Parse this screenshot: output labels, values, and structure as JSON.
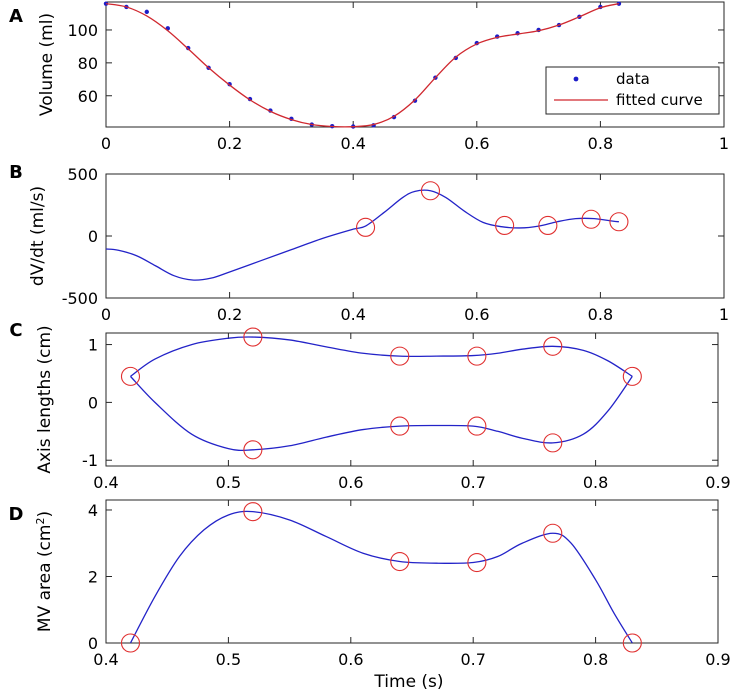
{
  "colors": {
    "curve": "#2323c8",
    "fit": "#d0282f",
    "marker": "#e03030",
    "points": "#1d1dc8",
    "axis": "#262626"
  },
  "chart_data": [
    {
      "panel": "A",
      "type": "line",
      "ylabel": "Volume (ml)",
      "xlabel": "",
      "xlim": [
        0,
        1
      ],
      "ylim": [
        41,
        117
      ],
      "xticks": [
        0,
        0.2,
        0.4,
        0.6,
        0.8,
        1
      ],
      "xtick_labels": [
        "0",
        "0.2",
        "0.4",
        "0.6",
        "0.8",
        "1"
      ],
      "yticks": [
        60,
        80,
        100
      ],
      "ytick_labels": [
        "60",
        "80",
        "100"
      ],
      "legend": {
        "position": "bottom-right",
        "entries": [
          "data",
          "fitted curve"
        ]
      },
      "series": [
        {
          "name": "data",
          "style": "points",
          "x": [
            0,
            0.033,
            0.066,
            0.1,
            0.133,
            0.166,
            0.2,
            0.233,
            0.266,
            0.3,
            0.333,
            0.366,
            0.4,
            0.433,
            0.466,
            0.5,
            0.533,
            0.566,
            0.6,
            0.633,
            0.666,
            0.7,
            0.733,
            0.766,
            0.8,
            0.83
          ],
          "y": [
            116,
            114,
            111,
            101,
            89,
            77,
            67,
            58,
            51,
            46,
            42.5,
            41.5,
            41.3,
            42,
            47,
            57,
            71,
            83,
            92,
            96,
            98,
            100,
            103,
            108,
            114,
            116
          ]
        },
        {
          "name": "fitted curve",
          "style": "line",
          "x": [
            0,
            0.033,
            0.066,
            0.1,
            0.133,
            0.166,
            0.2,
            0.233,
            0.266,
            0.3,
            0.333,
            0.366,
            0.4,
            0.433,
            0.466,
            0.5,
            0.533,
            0.566,
            0.6,
            0.633,
            0.666,
            0.7,
            0.733,
            0.766,
            0.8,
            0.83
          ],
          "y": [
            116,
            114,
            108.5,
            99.5,
            88.5,
            77,
            66.5,
            57.5,
            50.5,
            45.5,
            42.5,
            41.3,
            41.2,
            42.5,
            47.5,
            57.5,
            71,
            83.5,
            91.5,
            95.5,
            97.5,
            99.5,
            103,
            108,
            113.5,
            116
          ]
        }
      ]
    },
    {
      "panel": "B",
      "type": "line",
      "ylabel": "dV/dt (ml/s)",
      "xlabel": "",
      "xlim": [
        0,
        1
      ],
      "ylim": [
        -500,
        500
      ],
      "xticks": [
        0,
        0.2,
        0.4,
        0.6,
        0.8,
        1
      ],
      "xtick_labels": [
        "0",
        "0.2",
        "0.4",
        "0.6",
        "0.8",
        "1"
      ],
      "yticks": [
        -500,
        0,
        500
      ],
      "ytick_labels": [
        "-500",
        "0",
        "500"
      ],
      "series": [
        {
          "name": "dV/dt",
          "style": "line",
          "x": [
            0,
            0.02,
            0.05,
            0.08,
            0.11,
            0.14,
            0.17,
            0.2,
            0.25,
            0.3,
            0.35,
            0.4,
            0.42,
            0.45,
            0.48,
            0.5,
            0.525,
            0.55,
            0.58,
            0.61,
            0.64,
            0.67,
            0.7,
            0.73,
            0.76,
            0.79,
            0.82,
            0.83
          ],
          "y": [
            -105,
            -115,
            -160,
            -240,
            -320,
            -355,
            -340,
            -290,
            -200,
            -110,
            -20,
            55,
            80,
            190,
            310,
            360,
            365,
            310,
            200,
            110,
            75,
            65,
            80,
            115,
            140,
            140,
            120,
            115
          ]
        },
        {
          "name": "markers",
          "style": "circles",
          "x": [
            0.42,
            0.525,
            0.645,
            0.715,
            0.785,
            0.83
          ],
          "y": [
            70,
            365,
            85,
            85,
            135,
            115
          ]
        }
      ]
    },
    {
      "panel": "C",
      "type": "line",
      "ylabel": "Axis lengths (cm)",
      "xlabel": "",
      "xlim": [
        0.4,
        0.9
      ],
      "ylim": [
        -1.1,
        1.2
      ],
      "xticks": [
        0.4,
        0.5,
        0.6,
        0.7,
        0.8,
        0.9
      ],
      "xtick_labels": [
        "0.4",
        "0.5",
        "0.6",
        "0.7",
        "0.8",
        "0.9"
      ],
      "yticks": [
        -1,
        0,
        1
      ],
      "ytick_labels": [
        "-1",
        "0",
        "1"
      ],
      "series": [
        {
          "name": "upper axis",
          "style": "line",
          "x": [
            0.42,
            0.44,
            0.47,
            0.5,
            0.52,
            0.55,
            0.58,
            0.61,
            0.64,
            0.67,
            0.7,
            0.72,
            0.74,
            0.765,
            0.79,
            0.81,
            0.83
          ],
          "y": [
            0.45,
            0.75,
            1.0,
            1.11,
            1.13,
            1.08,
            0.96,
            0.85,
            0.8,
            0.8,
            0.81,
            0.85,
            0.92,
            0.97,
            0.9,
            0.72,
            0.45
          ]
        },
        {
          "name": "lower axis",
          "style": "line",
          "x": [
            0.42,
            0.44,
            0.47,
            0.5,
            0.52,
            0.55,
            0.58,
            0.61,
            0.64,
            0.67,
            0.7,
            0.72,
            0.74,
            0.765,
            0.79,
            0.81,
            0.83
          ],
          "y": [
            0.45,
            0.0,
            -0.55,
            -0.8,
            -0.82,
            -0.75,
            -0.6,
            -0.47,
            -0.41,
            -0.4,
            -0.41,
            -0.5,
            -0.62,
            -0.7,
            -0.55,
            -0.15,
            0.45
          ]
        },
        {
          "name": "markers",
          "style": "circles",
          "x": [
            0.42,
            0.52,
            0.52,
            0.64,
            0.64,
            0.703,
            0.703,
            0.765,
            0.765,
            0.83
          ],
          "y": [
            0.45,
            1.13,
            -0.82,
            0.8,
            -0.41,
            0.8,
            -0.41,
            0.97,
            -0.7,
            0.45
          ]
        }
      ]
    },
    {
      "panel": "D",
      "type": "line",
      "ylabel": "MV area (cm",
      "ylabel_sup": "2",
      "ylabel_end": ")",
      "xlabel": "Time (s)",
      "xlim": [
        0.4,
        0.9
      ],
      "ylim": [
        0,
        4.3
      ],
      "xticks": [
        0.4,
        0.5,
        0.6,
        0.7,
        0.8,
        0.9
      ],
      "xtick_labels": [
        "0.4",
        "0.5",
        "0.6",
        "0.7",
        "0.8",
        "0.9"
      ],
      "yticks": [
        0,
        2,
        4
      ],
      "ytick_labels": [
        "0",
        "2",
        "4"
      ],
      "series": [
        {
          "name": "MV area",
          "style": "line",
          "x": [
            0.42,
            0.44,
            0.46,
            0.48,
            0.5,
            0.52,
            0.55,
            0.58,
            0.61,
            0.64,
            0.67,
            0.7,
            0.72,
            0.74,
            0.765,
            0.78,
            0.8,
            0.815,
            0.83
          ],
          "y": [
            0,
            1.4,
            2.6,
            3.4,
            3.85,
            3.95,
            3.7,
            3.2,
            2.7,
            2.45,
            2.4,
            2.42,
            2.6,
            3.0,
            3.3,
            3.0,
            1.9,
            0.9,
            0
          ]
        },
        {
          "name": "markers",
          "style": "circles",
          "x": [
            0.42,
            0.52,
            0.64,
            0.703,
            0.765,
            0.83
          ],
          "y": [
            0,
            3.95,
            2.45,
            2.42,
            3.3,
            0
          ]
        }
      ]
    }
  ]
}
